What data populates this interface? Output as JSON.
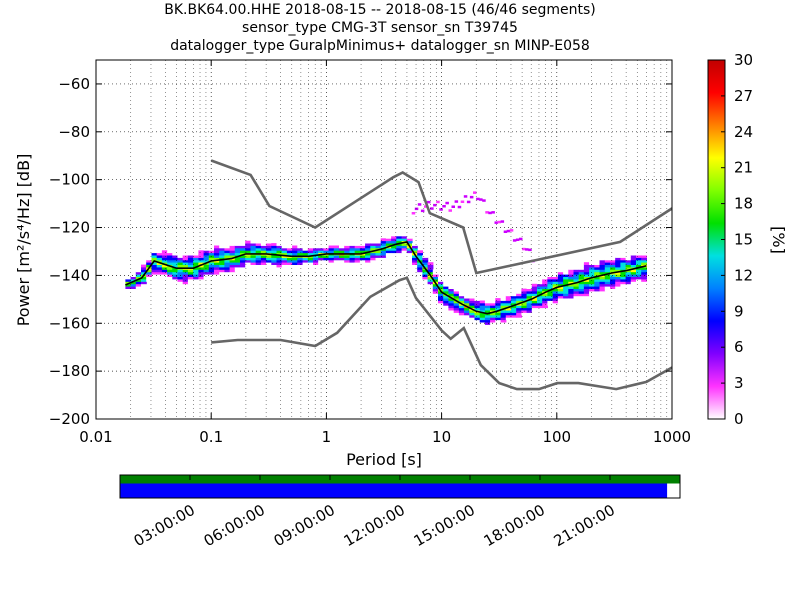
{
  "header": {
    "title_lines": [
      "BK.BK64.00.HHE   2018-08-15 -- 2018-08-15  (46/46 segments)",
      "sensor_type CMG-3T sensor_sn T39745",
      "datalogger_type GuralpMinimus+ datalogger_sn MINP-E058"
    ]
  },
  "chart_data": {
    "type": "heatmap",
    "subtype": "probabilistic power spectral density",
    "xlabel": "Period [s]",
    "ylabel": "Power [m²/s⁴/Hz] [dB]",
    "xscale": "log",
    "xlim": [
      0.01,
      1000
    ],
    "ylim": [
      -200,
      -50
    ],
    "x_tick_labels": [
      "0.01",
      "0.1",
      "1",
      "10",
      "100",
      "1000"
    ],
    "y_ticks": [
      -60,
      -80,
      -100,
      -120,
      -140,
      -160,
      -180,
      -200
    ],
    "y_tick_labels": [
      "−60",
      "−80",
      "−100",
      "−120",
      "−140",
      "−160",
      "−180",
      "−200"
    ],
    "grid": true,
    "colorbar": {
      "label": "[%]",
      "range": [
        0,
        30
      ],
      "ticks": [
        "0",
        "3",
        "6",
        "9",
        "12",
        "15",
        "18",
        "21",
        "24",
        "27",
        "30"
      ],
      "colormap": [
        "#ffffff",
        "#ff33ff",
        "#8000ff",
        "#0000ff",
        "#0080ff",
        "#00e0e0",
        "#00e000",
        "#80ff00",
        "#ffff00",
        "#ff8000",
        "#ff0000",
        "#c00000"
      ]
    },
    "noise_model_high": [
      [
        0.1,
        -92
      ],
      [
        0.22,
        -98
      ],
      [
        0.32,
        -111
      ],
      [
        0.8,
        -120
      ],
      [
        3.8,
        -99
      ],
      [
        4.6,
        -97
      ],
      [
        6.3,
        -101
      ],
      [
        7.9,
        -114
      ],
      [
        15.4,
        -120
      ],
      [
        20,
        -139
      ],
      [
        354.8,
        -126
      ],
      [
        1000,
        -112
      ]
    ],
    "noise_model_low": [
      [
        0.1,
        -168
      ],
      [
        0.17,
        -167
      ],
      [
        0.4,
        -167
      ],
      [
        0.8,
        -169.5
      ],
      [
        1.24,
        -164
      ],
      [
        2.4,
        -149
      ],
      [
        4.3,
        -142
      ],
      [
        5,
        -141
      ],
      [
        6,
        -149.5
      ],
      [
        10,
        -163
      ],
      [
        12,
        -166.5
      ],
      [
        15.6,
        -162
      ],
      [
        21.9,
        -177.5
      ],
      [
        31.6,
        -185
      ],
      [
        45,
        -187.5
      ],
      [
        70,
        -187.5
      ],
      [
        101,
        -185
      ],
      [
        154,
        -185
      ],
      [
        328,
        -187.5
      ],
      [
        600,
        -184.5
      ],
      [
        1000,
        -178.5
      ]
    ],
    "median_psd": [
      [
        0.018,
        -144
      ],
      [
        0.025,
        -141
      ],
      [
        0.032,
        -134
      ],
      [
        0.05,
        -137
      ],
      [
        0.07,
        -137
      ],
      [
        0.1,
        -134
      ],
      [
        0.15,
        -133
      ],
      [
        0.2,
        -131
      ],
      [
        0.3,
        -131
      ],
      [
        0.5,
        -132
      ],
      [
        0.7,
        -132
      ],
      [
        1,
        -131
      ],
      [
        1.5,
        -131
      ],
      [
        2,
        -131
      ],
      [
        3,
        -129
      ],
      [
        4,
        -127
      ],
      [
        5,
        -126
      ],
      [
        6,
        -132
      ],
      [
        8,
        -140
      ],
      [
        10,
        -147
      ],
      [
        15,
        -152
      ],
      [
        20,
        -155
      ],
      [
        25,
        -156
      ],
      [
        30,
        -155
      ],
      [
        40,
        -153
      ],
      [
        60,
        -150
      ],
      [
        80,
        -147
      ],
      [
        100,
        -145
      ],
      [
        150,
        -143
      ],
      [
        200,
        -141
      ],
      [
        300,
        -139
      ],
      [
        400,
        -138
      ],
      [
        600,
        -136
      ]
    ],
    "density_spread_db": [
      [
        0.018,
        2
      ],
      [
        0.03,
        5
      ],
      [
        0.05,
        6
      ],
      [
        0.1,
        6
      ],
      [
        0.3,
        5
      ],
      [
        1,
        3
      ],
      [
        2,
        4
      ],
      [
        5,
        4
      ],
      [
        8,
        5
      ],
      [
        15,
        5
      ],
      [
        25,
        5
      ],
      [
        40,
        5
      ],
      [
        80,
        6
      ],
      [
        200,
        7
      ],
      [
        600,
        6
      ]
    ],
    "outlier_band": [
      [
        5.5,
        -112
      ],
      [
        8,
        -110
      ],
      [
        12,
        -111
      ],
      [
        17,
        -107
      ],
      [
        20,
        -106
      ],
      [
        25,
        -113
      ],
      [
        35,
        -120
      ],
      [
        50,
        -127
      ],
      [
        60,
        -132
      ]
    ]
  },
  "timeline": {
    "tick_labels": [
      "03:00:00",
      "06:00:00",
      "09:00:00",
      "12:00:00",
      "15:00:00",
      "18:00:00",
      "21:00:00"
    ],
    "top_bar_color": "#008000",
    "bottom_bar_color": "#0000ff",
    "bottom_bar_fraction": 0.977
  }
}
